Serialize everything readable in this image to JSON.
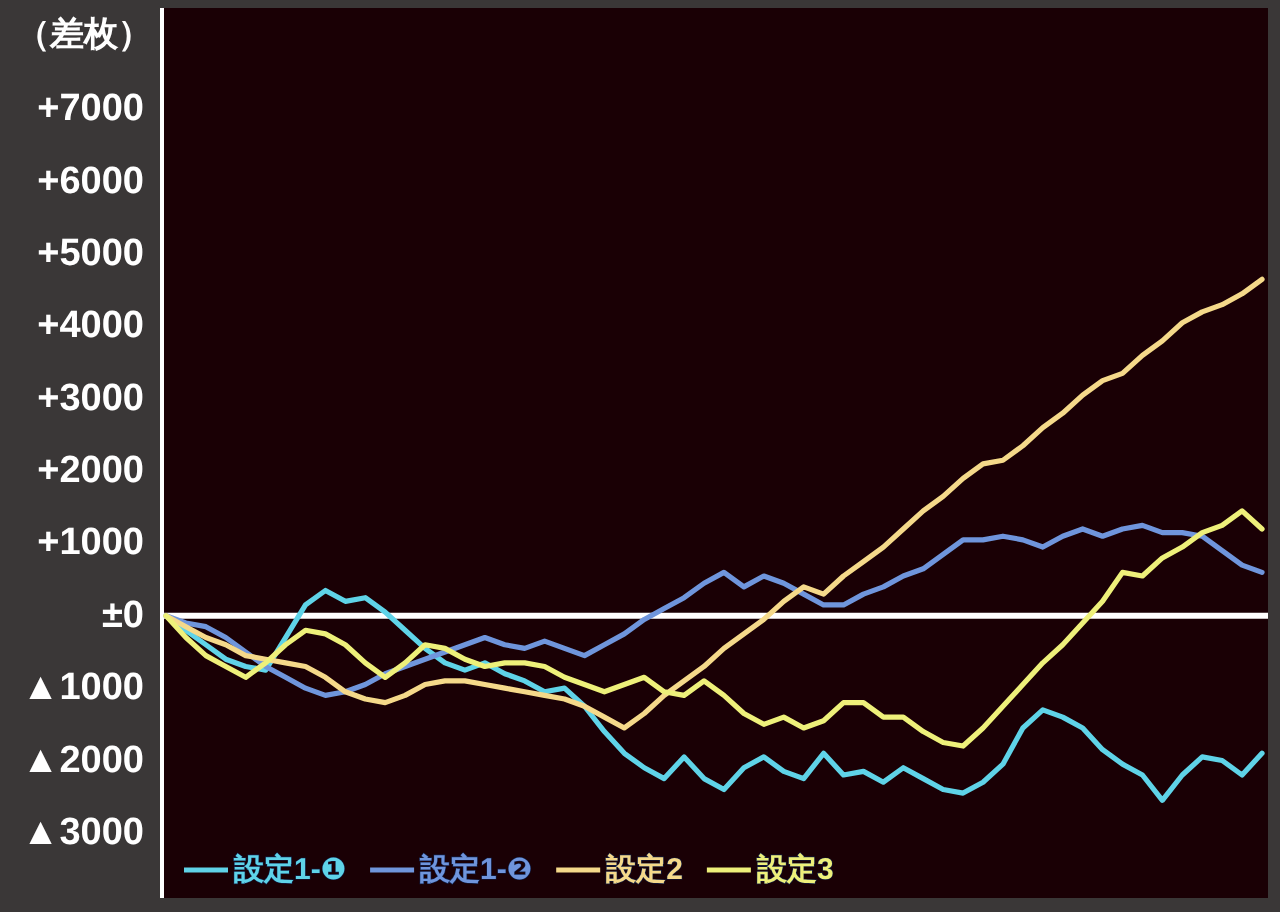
{
  "chart_data": {
    "type": "line",
    "ylabel": "（差枚）",
    "categories": [
      null,
      null,
      null,
      null,
      null,
      null,
      null,
      null,
      null,
      null,
      null,
      null,
      null,
      null,
      null,
      null,
      null,
      null,
      null,
      null,
      null,
      null,
      null,
      null,
      null,
      null,
      null,
      null,
      null,
      null,
      null,
      null,
      null,
      null,
      null,
      null,
      null,
      null,
      null,
      null,
      null,
      null,
      null,
      null,
      null,
      null,
      null,
      null,
      null,
      null,
      null,
      null,
      null,
      null,
      null,
      null
    ],
    "series": [
      {
        "name": "設定1-❶",
        "color": "#5fd3e8",
        "values": [
          0,
          -200,
          -400,
          -600,
          -700,
          -750,
          -300,
          150,
          350,
          200,
          250,
          50,
          -200,
          -450,
          -650,
          -750,
          -650,
          -800,
          -900,
          -1050,
          -1000,
          -1250,
          -1600,
          -1900,
          -2100,
          -2250,
          -1950,
          -2250,
          -2400,
          -2100,
          -1950,
          -2150,
          -2250,
          -1900,
          -2200,
          -2150,
          -2300,
          -2100,
          -2250,
          -2400,
          -2450,
          -2300,
          -2050,
          -1550,
          -1300,
          -1400,
          -1550,
          -1850,
          -2050,
          -2200,
          -2550,
          -2200,
          -1950,
          -2000,
          -2200,
          -1900
        ]
      },
      {
        "name": "設定1-❷",
        "color": "#6f95dc",
        "values": [
          0,
          -100,
          -150,
          -300,
          -500,
          -700,
          -850,
          -1000,
          -1100,
          -1050,
          -950,
          -800,
          -700,
          -600,
          -500,
          -400,
          -300,
          -400,
          -450,
          -350,
          -450,
          -550,
          -400,
          -250,
          -50,
          100,
          250,
          450,
          600,
          400,
          550,
          450,
          300,
          150,
          150,
          300,
          400,
          550,
          650,
          850,
          1050,
          1050,
          1100,
          1050,
          950,
          1100,
          1200,
          1100,
          1200,
          1250,
          1150,
          1150,
          1100,
          900,
          700,
          600
        ]
      },
      {
        "name": "設定2",
        "color": "#f5d98a",
        "values": [
          0,
          -150,
          -300,
          -400,
          -550,
          -600,
          -650,
          -700,
          -850,
          -1050,
          -1150,
          -1200,
          -1100,
          -950,
          -900,
          -900,
          -950,
          -1000,
          -1050,
          -1100,
          -1150,
          -1250,
          -1400,
          -1550,
          -1350,
          -1100,
          -900,
          -700,
          -450,
          -250,
          -50,
          200,
          400,
          300,
          550,
          750,
          950,
          1200,
          1450,
          1650,
          1900,
          2100,
          2150,
          2350,
          2600,
          2800,
          3050,
          3250,
          3350,
          3600,
          3800,
          4050,
          4200,
          4300,
          4450,
          4650
        ]
      },
      {
        "name": "設定3",
        "color": "#eef07a",
        "values": [
          0,
          -300,
          -550,
          -700,
          -850,
          -650,
          -400,
          -200,
          -250,
          -400,
          -650,
          -850,
          -650,
          -400,
          -450,
          -600,
          -700,
          -650,
          -650,
          -700,
          -850,
          -950,
          -1050,
          -950,
          -850,
          -1050,
          -1100,
          -900,
          -1100,
          -1350,
          -1500,
          -1400,
          -1550,
          -1450,
          -1200,
          -1200,
          -1400,
          -1400,
          -1600,
          -1750,
          -1800,
          -1550,
          -1250,
          -950,
          -650,
          -400,
          -100,
          200,
          600,
          550,
          800,
          950,
          1150,
          1250,
          1450,
          1200
        ]
      }
    ],
    "ylim": [
      -3900,
      8400
    ],
    "yticks": [
      {
        "value": 7000,
        "label": "+7000"
      },
      {
        "value": 6000,
        "label": "+6000"
      },
      {
        "value": 5000,
        "label": "+5000"
      },
      {
        "value": 4000,
        "label": "+4000"
      },
      {
        "value": 3000,
        "label": "+3000"
      },
      {
        "value": 2000,
        "label": "+2000"
      },
      {
        "value": 1000,
        "label": "+1000"
      },
      {
        "value": 0,
        "label": "±0"
      },
      {
        "value": -1000,
        "label": "▲1000"
      },
      {
        "value": -2000,
        "label": "▲2000"
      },
      {
        "value": -3000,
        "label": "▲3000"
      }
    ],
    "ref_lines": [
      {
        "axis": "y",
        "value": 0,
        "color": "#ffffff"
      }
    ],
    "grid": false,
    "legend": "bottom left",
    "marker": "none",
    "line_style": "solid"
  }
}
